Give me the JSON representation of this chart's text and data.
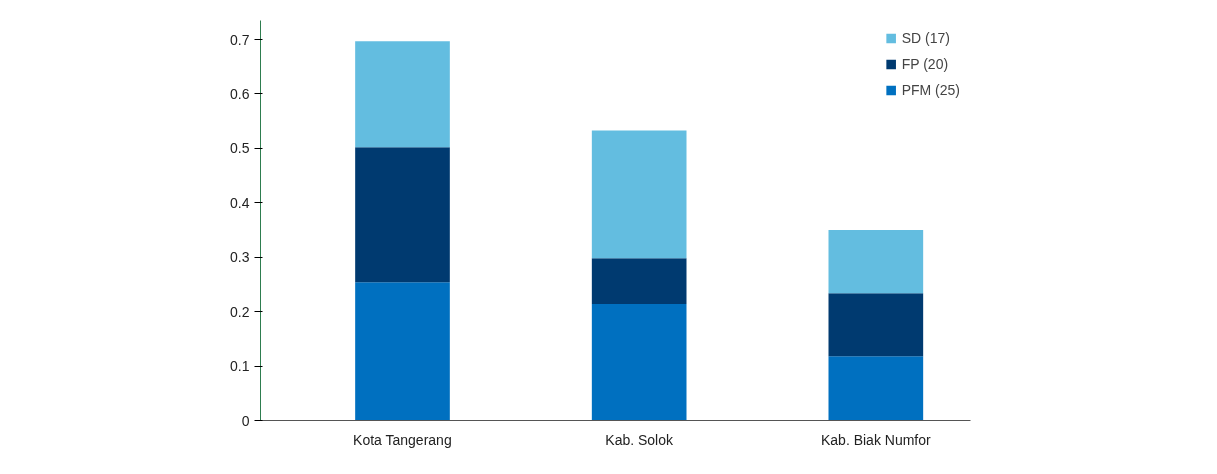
{
  "chart_data": {
    "type": "bar",
    "stacked": true,
    "categories": [
      "Kota Tangerang",
      "Kab. Solok",
      "Kab. Biak Numfor"
    ],
    "series": [
      {
        "name": "PFM (25)",
        "color": "#0070c0",
        "values": [
          0.254,
          0.214,
          0.118
        ]
      },
      {
        "name": "FP (20)",
        "color": "#003a70",
        "values": [
          0.248,
          0.084,
          0.116
        ]
      },
      {
        "name": "SD (17)",
        "color": "#63bde0",
        "values": [
          0.195,
          0.235,
          0.116
        ]
      }
    ],
    "ylim": [
      0,
      0.7
    ],
    "yticks": [
      0,
      0.1,
      0.2,
      0.3,
      0.4,
      0.5,
      0.6,
      0.7
    ],
    "grid": false,
    "legend": "top right"
  }
}
